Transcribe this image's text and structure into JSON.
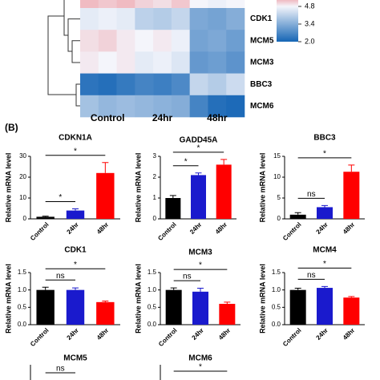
{
  "panel_label": "(B)",
  "chart_data": [
    {
      "type": "heatmap",
      "row_labels": [
        null,
        "CDK1",
        "MCM5",
        "MCM3",
        "BBC3",
        "MCM6"
      ],
      "col_groups": [
        "Control",
        "24hr",
        "48hr"
      ],
      "values": [
        [
          5.3,
          5.2,
          5.3,
          5.1,
          5.0,
          5.2,
          4.8,
          4.7,
          4.8
        ],
        [
          4.6,
          4.7,
          4.6,
          4.1,
          4.0,
          4.2,
          3.3,
          3.2,
          3.4
        ],
        [
          5.0,
          5.1,
          4.9,
          4.8,
          4.9,
          4.7,
          3.2,
          3.3,
          3.1
        ],
        [
          4.9,
          4.8,
          4.9,
          4.6,
          4.7,
          4.5,
          3.0,
          3.1,
          2.9
        ],
        [
          2.3,
          2.2,
          2.4,
          2.6,
          2.5,
          2.7,
          4.2,
          4.0,
          4.3
        ],
        [
          3.8,
          3.6,
          3.7,
          3.6,
          3.5,
          3.4,
          2.6,
          2.2,
          2.1
        ]
      ],
      "clim": [
        2.0,
        6.2
      ],
      "color_stops": [
        [
          2.0,
          "#1565b5"
        ],
        [
          4.8,
          "#f4f5fb"
        ],
        [
          6.2,
          "#e8535c"
        ]
      ],
      "colorbar_ticks": [
        4.8,
        3.4,
        {
          "value": 2.0,
          "label": "2.0"
        }
      ]
    },
    {
      "type": "bar",
      "title": "CDKN1A",
      "ylabel": "Relative mRNA level",
      "categories": [
        "Control",
        "24hr",
        "48hr"
      ],
      "values": [
        1,
        4,
        22
      ],
      "errors": [
        0.3,
        0.8,
        5
      ],
      "colors": [
        "#000000",
        "#1a1acd",
        "#ff0000"
      ],
      "ylim": [
        0,
        30
      ],
      "yticks": [
        0,
        10,
        20,
        30
      ],
      "annotations": [
        {
          "text": "*",
          "pair": [
            0,
            1
          ]
        },
        {
          "text": "*",
          "pair": [
            0,
            2
          ]
        }
      ]
    },
    {
      "type": "bar",
      "title": "GADD45A",
      "ylabel": "Relative mRNA level",
      "categories": [
        "Control",
        "24hr",
        "48hr"
      ],
      "values": [
        1,
        2.1,
        2.6
      ],
      "errors": [
        0.12,
        0.1,
        0.25
      ],
      "colors": [
        "#000000",
        "#1a1acd",
        "#ff0000"
      ],
      "ylim": [
        0,
        3
      ],
      "yticks": [
        0,
        1,
        2,
        3
      ],
      "annotations": [
        {
          "text": "*",
          "pair": [
            0,
            1
          ]
        },
        {
          "text": "*",
          "pair": [
            0,
            2
          ]
        }
      ]
    },
    {
      "type": "bar",
      "title": "BBC3",
      "ylabel": "Relative mRNA level",
      "categories": [
        "Control",
        "24hr",
        "48hr"
      ],
      "values": [
        1,
        2.8,
        11.3
      ],
      "errors": [
        0.5,
        0.4,
        1.6
      ],
      "colors": [
        "#000000",
        "#1a1acd",
        "#ff0000"
      ],
      "ylim": [
        0,
        15
      ],
      "yticks": [
        0,
        5,
        10,
        15
      ],
      "annotations": [
        {
          "text": "ns",
          "pair": [
            0,
            1
          ]
        },
        {
          "text": "*",
          "pair": [
            0,
            2
          ]
        }
      ]
    },
    {
      "type": "bar",
      "title": "CDK1",
      "ylabel": "Relative mRNA level",
      "categories": [
        "Control",
        "24hr",
        "48hr"
      ],
      "values": [
        1.0,
        1.0,
        0.65
      ],
      "errors": [
        0.08,
        0.06,
        0.03
      ],
      "colors": [
        "#000000",
        "#1a1acd",
        "#ff0000"
      ],
      "ylim": [
        0,
        1.5
      ],
      "yticks": [
        {
          "value": 0,
          "label": "0.0"
        },
        0.5,
        {
          "value": 1,
          "label": "1.0"
        },
        1.5
      ],
      "annotations": [
        {
          "text": "ns",
          "pair": [
            0,
            1
          ]
        },
        {
          "text": "*",
          "pair": [
            0,
            2
          ]
        }
      ]
    },
    {
      "type": "bar",
      "title": "MCM3",
      "ylabel": "Relative mRNA level",
      "categories": [
        "Control",
        "24hr",
        "48hr"
      ],
      "values": [
        1.0,
        0.95,
        0.6
      ],
      "errors": [
        0.06,
        0.1,
        0.05
      ],
      "colors": [
        "#000000",
        "#1a1acd",
        "#ff0000"
      ],
      "ylim": [
        0,
        1.5
      ],
      "yticks": [
        {
          "value": 0,
          "label": "0.0"
        },
        0.5,
        {
          "value": 1,
          "label": "1.0"
        },
        1.5
      ],
      "annotations": [
        {
          "text": "ns",
          "pair": [
            0,
            1
          ]
        },
        {
          "text": "*",
          "pair": [
            0,
            2
          ]
        }
      ]
    },
    {
      "type": "bar",
      "title": "MCM4",
      "ylabel": "Relative mRNA level",
      "categories": [
        "Control",
        "24hr",
        "48hr"
      ],
      "values": [
        1.0,
        1.06,
        0.78
      ],
      "errors": [
        0.05,
        0.04,
        0.03
      ],
      "colors": [
        "#000000",
        "#1a1acd",
        "#ff0000"
      ],
      "ylim": [
        0,
        1.5
      ],
      "yticks": [
        {
          "value": 0,
          "label": "0.0"
        },
        0.5,
        {
          "value": 1,
          "label": "1.0"
        },
        1.5
      ],
      "annotations": [
        {
          "text": "ns",
          "pair": [
            0,
            1
          ]
        },
        {
          "text": "*",
          "pair": [
            0,
            2
          ]
        }
      ]
    },
    {
      "type": "partial",
      "title": "MCM5",
      "annotations": [
        {
          "text": "ns",
          "pair": [
            0,
            1
          ]
        }
      ]
    },
    {
      "type": "partial",
      "title": "MCM6",
      "annotations": [
        {
          "text": "*",
          "pair": [
            0,
            2
          ]
        }
      ]
    }
  ]
}
